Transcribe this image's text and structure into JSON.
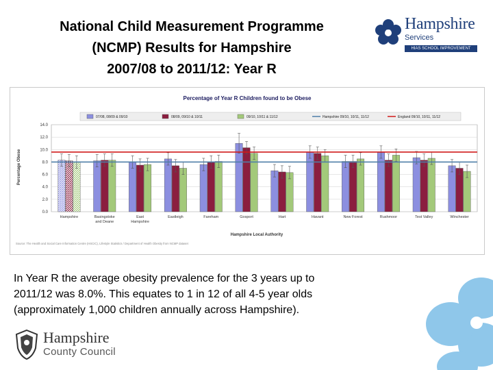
{
  "slide": {
    "title_lines": [
      "National Child Measurement Programme",
      "(NCMP) Results for Hampshire",
      "2007/08 to 2011/12: Year R"
    ],
    "body_lines": [
      "In Year R the average obesity prevalence for the 3 years up to",
      "2011/12 was 8.0%. This equates to 1 in 12 of all 4-5 year olds",
      "(approximately 1,000 children annually across Hampshire)."
    ]
  },
  "logos": {
    "hampshire_services": {
      "name": "Hampshire",
      "services": "Services",
      "bar_text": "HIAS SCHOOL IMPROVEMENT",
      "color": "#1f3f7a"
    },
    "hampshire_county_council": {
      "name": "Hampshire",
      "sub": "County Council"
    },
    "decor_color": "#8fc7ea"
  },
  "chart_data": {
    "type": "bar",
    "title": "Percentage of Year R Children found to be Obese",
    "ylabel": "Percentage Obese",
    "xlabel": "Hampshire Local Authority",
    "ylim": [
      0,
      14
    ],
    "yticks": [
      "0.0",
      "2.0",
      "4.0",
      "6.0",
      "8.0",
      "10.0",
      "12.0",
      "14.0"
    ],
    "source": "Source: The Health and Social Care Information Centre (HSCIC), Lifestyle Statistics / Department of Health Obesity from NCMP dataset",
    "categories": [
      "Hampshire",
      "Basingstoke and Deane",
      "East Hampshire",
      "Eastleigh",
      "Fareham",
      "Gosport",
      "Hart",
      "Havant",
      "New Forest",
      "Rushmoor",
      "Test Valley",
      "Winchester"
    ],
    "category_lines": [
      [
        "Hampshire"
      ],
      [
        "Basingstoke",
        "and Deane"
      ],
      [
        "East",
        "Hampshire"
      ],
      [
        "Eastleigh"
      ],
      [
        "Fareham"
      ],
      [
        "Gosport"
      ],
      [
        "Hart"
      ],
      [
        "Havant"
      ],
      [
        "New Forest"
      ],
      [
        "Rushmoor"
      ],
      [
        "Test Valley"
      ],
      [
        "Winchester"
      ]
    ],
    "series": [
      {
        "name": "07/08, 08/09 & 09/10",
        "color": "#8c8fe0",
        "values": [
          8.3,
          8.2,
          8.0,
          8.5,
          7.6,
          11.0,
          6.6,
          9.6,
          8.1,
          9.6,
          8.7,
          7.4
        ]
      },
      {
        "name": "08/09, 09/10 & 10/11",
        "color": "#8b1e3f",
        "values": [
          8.2,
          8.3,
          7.5,
          7.4,
          8.0,
          10.3,
          6.4,
          9.4,
          8.1,
          8.3,
          8.3,
          7.0
        ]
      },
      {
        "name": "09/10, 10/11 & 11/12",
        "color": "#a3c97a",
        "values": [
          8.0,
          8.3,
          7.6,
          7.0,
          8.1,
          9.4,
          6.3,
          9.0,
          8.5,
          9.1,
          8.6,
          6.5
        ]
      }
    ],
    "reference_lines": [
      {
        "name": "Hampshire 09/10, 10/11, 11/12",
        "color": "#4f7fa8",
        "value": 8.0
      },
      {
        "name": "England 09/10, 10/11, 11/12",
        "color": "#d11a1a",
        "value": 9.6
      }
    ],
    "grid": true,
    "legend_position": "top"
  }
}
